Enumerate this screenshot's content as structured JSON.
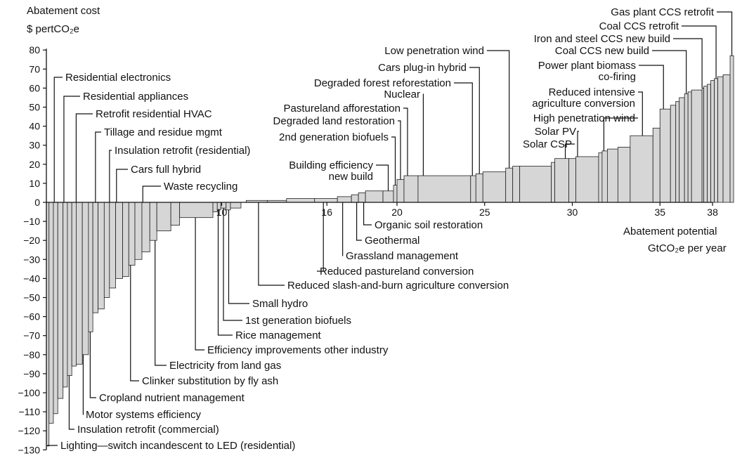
{
  "chart_data": {
    "type": "bar",
    "subtype": "marginal abatement cost curve (variable-width bars)",
    "ylabel": "Abatement cost",
    "ylabel_unit": "$ pertCO₂e",
    "xlabel": "Abatement potential",
    "xlabel_unit": "GtCO₂e per year",
    "ylim": [
      -130,
      80
    ],
    "xlim": [
      0,
      38
    ],
    "yticks": [
      80,
      70,
      60,
      50,
      40,
      30,
      20,
      10,
      0,
      -10,
      -20,
      -30,
      -40,
      -50,
      -60,
      -70,
      -80,
      -90,
      -100,
      -110,
      -120,
      -130
    ],
    "ytick_labels": [
      "80",
      "70",
      "60",
      "50",
      "40",
      "30",
      "20",
      "10",
      "0",
      "−10",
      "−20",
      "−30",
      "−40",
      "−50",
      "−60",
      "−70",
      "−80",
      "−90",
      "−100",
      "−110",
      "−120",
      "−130"
    ],
    "xticks": [
      10,
      16,
      20,
      25,
      30,
      35,
      38
    ],
    "bars": [
      {
        "x0": 0.0,
        "x1": 0.15,
        "y": -128
      },
      {
        "x0": 0.15,
        "x1": 0.4,
        "y": -116
      },
      {
        "x0": 0.4,
        "x1": 0.65,
        "y": -111
      },
      {
        "x0": 0.65,
        "x1": 0.95,
        "y": -103
      },
      {
        "x0": 0.95,
        "x1": 1.2,
        "y": -97
      },
      {
        "x0": 1.2,
        "x1": 1.45,
        "y": -91
      },
      {
        "x0": 1.45,
        "x1": 1.7,
        "y": -86
      },
      {
        "x0": 1.7,
        "x1": 2.05,
        "y": -85
      },
      {
        "x0": 2.05,
        "x1": 2.4,
        "y": -80
      },
      {
        "x0": 2.4,
        "x1": 2.65,
        "y": -68
      },
      {
        "x0": 2.65,
        "x1": 2.95,
        "y": -58
      },
      {
        "x0": 2.95,
        "x1": 3.3,
        "y": -56
      },
      {
        "x0": 3.3,
        "x1": 3.6,
        "y": -50
      },
      {
        "x0": 3.6,
        "x1": 3.95,
        "y": -45
      },
      {
        "x0": 3.95,
        "x1": 4.35,
        "y": -40
      },
      {
        "x0": 4.35,
        "x1": 4.7,
        "y": -39
      },
      {
        "x0": 4.7,
        "x1": 5.05,
        "y": -33
      },
      {
        "x0": 5.05,
        "x1": 5.45,
        "y": -30
      },
      {
        "x0": 5.45,
        "x1": 5.9,
        "y": -26
      },
      {
        "x0": 5.9,
        "x1": 6.3,
        "y": -20
      },
      {
        "x0": 6.3,
        "x1": 7.1,
        "y": -15
      },
      {
        "x0": 7.1,
        "x1": 7.6,
        "y": -12
      },
      {
        "x0": 7.6,
        "x1": 9.5,
        "y": -8
      },
      {
        "x0": 9.5,
        "x1": 9.75,
        "y": -5
      },
      {
        "x0": 9.75,
        "x1": 9.95,
        "y": -4
      },
      {
        "x0": 9.95,
        "x1": 10.25,
        "y": -3
      },
      {
        "x0": 10.25,
        "x1": 10.5,
        "y": -4
      },
      {
        "x0": 10.5,
        "x1": 11.1,
        "y": -3
      },
      {
        "x0": 11.4,
        "x1": 12.6,
        "y": 1
      },
      {
        "x0": 12.6,
        "x1": 13.7,
        "y": 1
      },
      {
        "x0": 13.7,
        "x1": 15.3,
        "y": 2
      },
      {
        "x0": 15.3,
        "x1": 16.6,
        "y": 2
      },
      {
        "x0": 16.6,
        "x1": 17.4,
        "y": 3
      },
      {
        "x0": 17.4,
        "x1": 17.8,
        "y": 4
      },
      {
        "x0": 17.8,
        "x1": 18.2,
        "y": 5
      },
      {
        "x0": 18.2,
        "x1": 19.2,
        "y": 6
      },
      {
        "x0": 19.2,
        "x1": 19.8,
        "y": 6
      },
      {
        "x0": 19.8,
        "x1": 20.0,
        "y": 9
      },
      {
        "x0": 20.0,
        "x1": 20.4,
        "y": 12
      },
      {
        "x0": 20.4,
        "x1": 21.2,
        "y": 14
      },
      {
        "x0": 21.2,
        "x1": 24.2,
        "y": 14
      },
      {
        "x0": 24.2,
        "x1": 24.5,
        "y": 14
      },
      {
        "x0": 24.5,
        "x1": 24.9,
        "y": 15
      },
      {
        "x0": 24.9,
        "x1": 26.2,
        "y": 16
      },
      {
        "x0": 26.2,
        "x1": 26.6,
        "y": 18
      },
      {
        "x0": 26.6,
        "x1": 27.0,
        "y": 19
      },
      {
        "x0": 27.0,
        "x1": 28.8,
        "y": 19
      },
      {
        "x0": 28.8,
        "x1": 29.0,
        "y": 21
      },
      {
        "x0": 29.0,
        "x1": 29.8,
        "y": 23
      },
      {
        "x0": 29.8,
        "x1": 30.2,
        "y": 23
      },
      {
        "x0": 30.2,
        "x1": 31.5,
        "y": 24
      },
      {
        "x0": 31.5,
        "x1": 31.7,
        "y": 26
      },
      {
        "x0": 31.7,
        "x1": 32.0,
        "y": 27
      },
      {
        "x0": 32.0,
        "x1": 32.6,
        "y": 28
      },
      {
        "x0": 32.6,
        "x1": 33.3,
        "y": 29
      },
      {
        "x0": 33.3,
        "x1": 34.6,
        "y": 35
      },
      {
        "x0": 34.6,
        "x1": 35.0,
        "y": 39
      },
      {
        "x0": 35.0,
        "x1": 35.6,
        "y": 49
      },
      {
        "x0": 35.6,
        "x1": 35.9,
        "y": 51
      },
      {
        "x0": 35.9,
        "x1": 36.1,
        "y": 53
      },
      {
        "x0": 36.1,
        "x1": 36.4,
        "y": 55
      },
      {
        "x0": 36.4,
        "x1": 36.6,
        "y": 57
      },
      {
        "x0": 36.6,
        "x1": 36.8,
        "y": 58
      },
      {
        "x0": 36.8,
        "x1": 37.4,
        "y": 59
      },
      {
        "x0": 37.4,
        "x1": 37.5,
        "y": 60
      },
      {
        "x0": 37.5,
        "x1": 37.7,
        "y": 61
      },
      {
        "x0": 37.7,
        "x1": 37.9,
        "y": 62
      },
      {
        "x0": 37.9,
        "x1": 38.1,
        "y": 64
      },
      {
        "x0": 38.1,
        "x1": 38.3,
        "y": 65
      },
      {
        "x0": 38.3,
        "x1": 38.6,
        "y": 66
      },
      {
        "x0": 38.6,
        "x1": 39.0,
        "y": 67
      },
      {
        "x0": 39.0,
        "x1": 39.2,
        "y": 77
      }
    ],
    "annotations": [
      {
        "text": "Residential electronics",
        "points_to_x": 0.45,
        "side": "above"
      },
      {
        "text": "Residential appliances",
        "points_to_x": 1.0,
        "side": "above"
      },
      {
        "text": "Retrofit residential HVAC",
        "points_to_x": 1.7,
        "side": "above"
      },
      {
        "text": "Tillage and residue mgmt",
        "points_to_x": 2.8,
        "side": "above"
      },
      {
        "text": "Insulation retrofit (residential)",
        "points_to_x": 3.6,
        "side": "above"
      },
      {
        "text": "Cars full hybrid",
        "points_to_x": 4.0,
        "side": "above"
      },
      {
        "text": "Waste recycling",
        "points_to_x": 5.5,
        "side": "above"
      },
      {
        "text": "Lighting—switch incandescent to LED (residential)",
        "points_to_x": 0.07,
        "side": "below"
      },
      {
        "text": "Insulation retrofit (commercial)",
        "points_to_x": 1.3,
        "side": "below"
      },
      {
        "text": "Motor systems efficiency",
        "points_to_x": 2.1,
        "side": "below"
      },
      {
        "text": "Cropland nutrient management",
        "points_to_x": 2.5,
        "side": "below"
      },
      {
        "text": "Clinker substitution by fly ash",
        "points_to_x": 4.8,
        "side": "below"
      },
      {
        "text": "Electricity from land gas",
        "points_to_x": 6.2,
        "side": "below"
      },
      {
        "text": "Efficiency improvements other industry",
        "points_to_x": 8.5,
        "side": "below"
      },
      {
        "text": "Rice management",
        "points_to_x": 9.8,
        "side": "below"
      },
      {
        "text": "1st generation biofuels",
        "points_to_x": 10.1,
        "side": "below"
      },
      {
        "text": "Small hydro",
        "points_to_x": 10.4,
        "side": "below"
      },
      {
        "text": "Reduced slash-and-burn agriculture conversion",
        "points_to_x": 12.1,
        "side": "below"
      },
      {
        "text": "Reduced pastureland conversion",
        "points_to_x": 15.8,
        "side": "below"
      },
      {
        "text": "Grassland management",
        "points_to_x": 16.9,
        "side": "below"
      },
      {
        "text": "Geothermal",
        "points_to_x": 17.7,
        "side": "below"
      },
      {
        "text": "Organic soil restoration",
        "points_to_x": 18.1,
        "side": "below"
      },
      {
        "text": "Building efficiency\nnew build",
        "points_to_x": 19.5,
        "side": "above"
      },
      {
        "text": "2nd generation biofuels",
        "points_to_x": 19.9,
        "side": "above"
      },
      {
        "text": "Degraded land restoration",
        "points_to_x": 20.2,
        "side": "above"
      },
      {
        "text": "Pastureland afforestation",
        "points_to_x": 20.6,
        "side": "above"
      },
      {
        "text": "Nuclear",
        "points_to_x": 21.5,
        "side": "above"
      },
      {
        "text": "Degraded forest reforestation",
        "points_to_x": 24.3,
        "side": "above"
      },
      {
        "text": "Cars plug-in hybrid",
        "points_to_x": 24.7,
        "side": "above"
      },
      {
        "text": "Low penetration wind",
        "points_to_x": 26.4,
        "side": "above"
      },
      {
        "text": "Solar CSP",
        "points_to_x": 29.6,
        "side": "above"
      },
      {
        "text": "Solar PV",
        "points_to_x": 30.3,
        "side": "above"
      },
      {
        "text": "High penetration wind",
        "points_to_x": 31.8,
        "side": "above"
      },
      {
        "text": "Reduced intensive\nagriculture conversion",
        "points_to_x": 34.0,
        "side": "above"
      },
      {
        "text": "Power plant biomass\nco-firing",
        "points_to_x": 35.2,
        "side": "above"
      },
      {
        "text": "Coal CCS new build",
        "points_to_x": 36.5,
        "side": "above"
      },
      {
        "text": "Iron and steel CCS new build",
        "points_to_x": 37.4,
        "side": "above"
      },
      {
        "text": "Coal CCS retrofit",
        "points_to_x": 38.2,
        "side": "above"
      },
      {
        "text": "Gas plant CCS retrofit",
        "points_to_x": 39.1,
        "side": "above"
      }
    ]
  }
}
